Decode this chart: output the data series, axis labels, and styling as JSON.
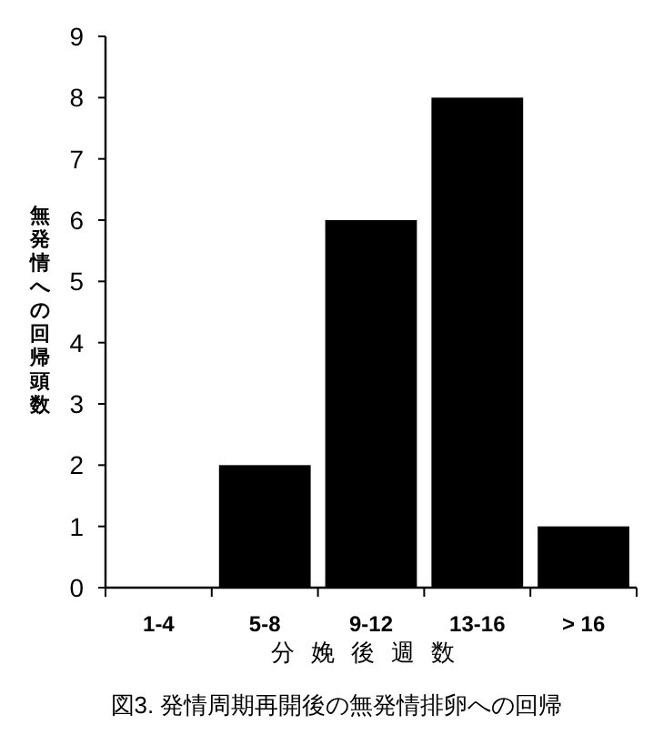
{
  "chart_data": {
    "type": "bar",
    "title": "図3. 発情周期再開後の無発情排卵への回帰",
    "xlabel": "分娩後週数",
    "ylabel": "無発情への回帰頭数",
    "categories": [
      "1-4",
      "5-8",
      "9-12",
      "13-16",
      "> 16"
    ],
    "values": [
      0,
      2,
      6,
      8,
      1
    ],
    "color": "#000000",
    "ylim": [
      0,
      9
    ],
    "yticks": [
      0,
      1,
      2,
      3,
      4,
      5,
      6,
      7,
      8,
      9
    ]
  }
}
